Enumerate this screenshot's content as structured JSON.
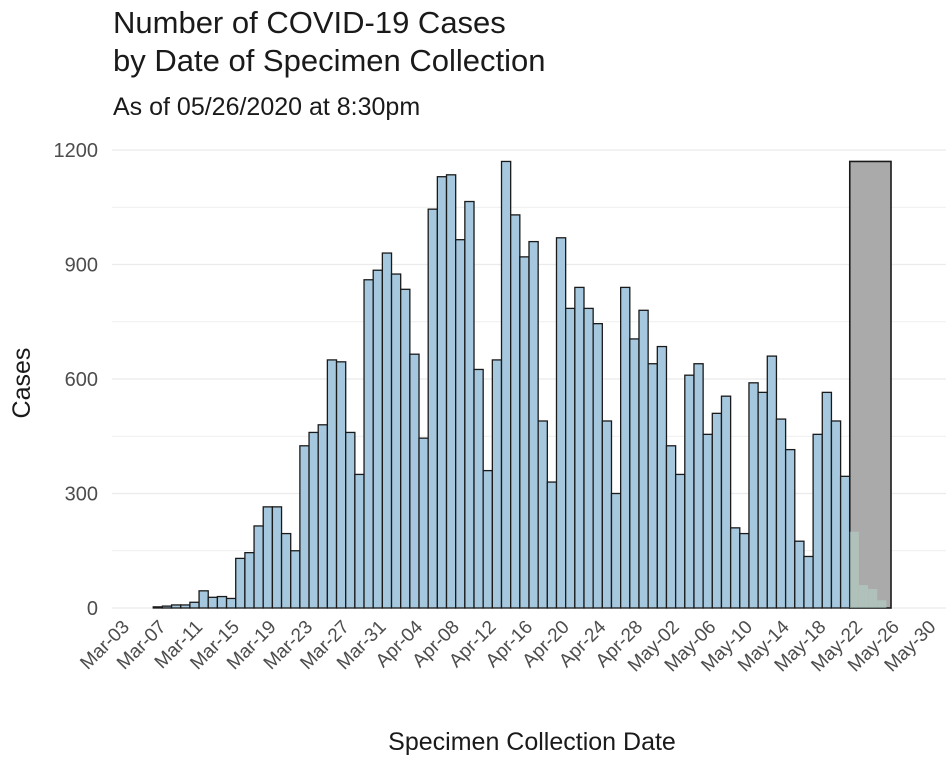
{
  "chart_data": {
    "type": "bar",
    "title_line1": "Number of COVID-19 Cases",
    "title_line2": "by Date of Specimen Collection",
    "subtitle": "As of 05/26/2020 at 8:30pm",
    "xlabel": "Specimen Collection Date",
    "ylabel": "Cases",
    "x_start": "2020-03-01",
    "ylim": [
      0,
      1200
    ],
    "yticks": [
      0,
      300,
      600,
      900,
      1200
    ],
    "xticks": [
      "Mar-03",
      "Mar-07",
      "Mar-11",
      "Mar-15",
      "Mar-19",
      "Mar-23",
      "Mar-27",
      "Mar-31",
      "Apr-04",
      "Apr-08",
      "Apr-12",
      "Apr-16",
      "Apr-20",
      "Apr-24",
      "Apr-28",
      "May-02",
      "May-06",
      "May-10",
      "May-14",
      "May-18",
      "May-22",
      "May-26",
      "May-30"
    ],
    "grid": true,
    "colors": {
      "bar_fill": "#a6c8de",
      "bar_stroke": "#1a1a1a",
      "pending_fill": "#aaaaaa",
      "recent_overlay": "#b5d2c6",
      "grid": "#ebebeb"
    },
    "series": [
      {
        "start": "2020-03-06",
        "values": [
          3,
          5,
          8,
          8,
          15,
          45,
          28,
          30,
          25,
          130,
          145,
          215,
          265,
          265,
          195,
          150,
          425,
          460,
          480,
          650,
          645,
          460,
          350,
          860,
          885,
          930,
          875,
          835,
          665,
          445,
          1045,
          1130,
          1135,
          965,
          1065,
          625,
          360,
          650,
          1170,
          1030,
          920,
          960,
          490,
          330,
          970,
          785,
          840,
          785,
          745,
          490,
          300,
          840,
          705,
          780,
          640,
          685,
          425,
          350,
          610,
          640,
          455,
          510,
          555,
          210,
          195,
          590,
          565,
          660,
          495,
          415,
          175,
          135,
          455,
          565,
          490,
          345
        ]
      },
      {
        "name": "recent",
        "start": "2020-05-21",
        "values": [
          200,
          60,
          50,
          20
        ]
      }
    ],
    "pending_block": {
      "start": "2020-05-21",
      "end": "2020-05-25",
      "value": 1170
    }
  }
}
